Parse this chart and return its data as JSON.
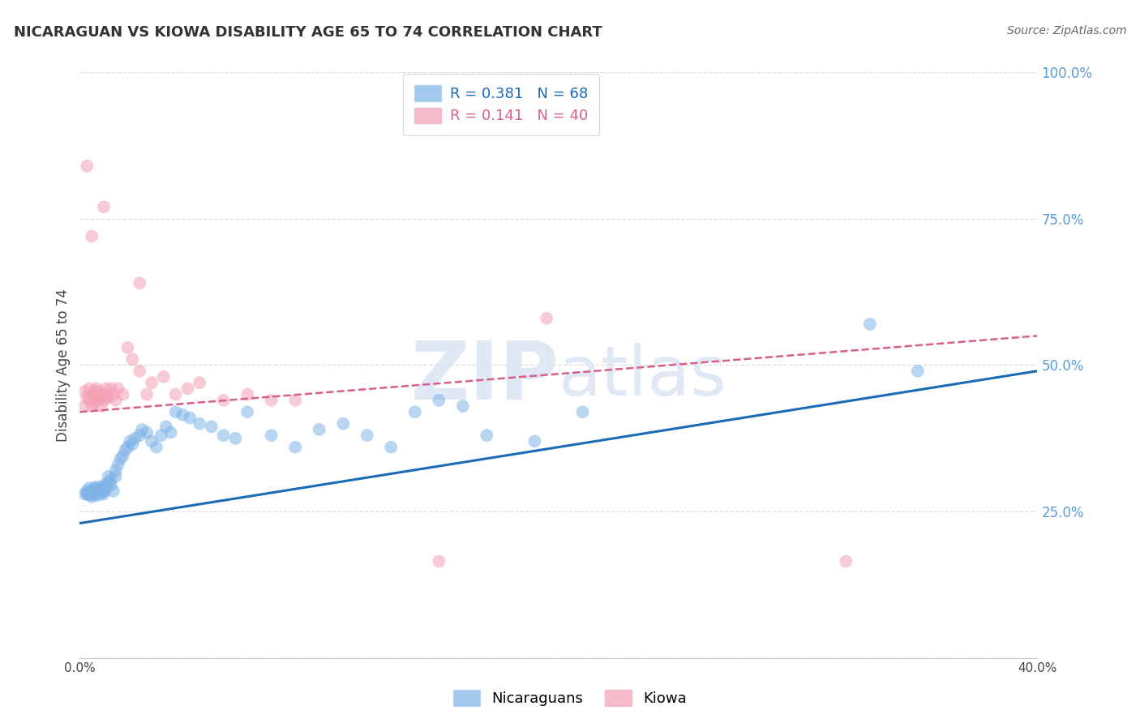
{
  "title": "NICARAGUAN VS KIOWA DISABILITY AGE 65 TO 74 CORRELATION CHART",
  "source": "Source: ZipAtlas.com",
  "ylabel": "Disability Age 65 to 74",
  "xmin": 0.0,
  "xmax": 0.4,
  "ymin": 0.0,
  "ymax": 1.0,
  "yticks": [
    0.0,
    0.25,
    0.5,
    0.75,
    1.0
  ],
  "ytick_labels": [
    "",
    "25.0%",
    "50.0%",
    "75.0%",
    "100.0%"
  ],
  "xtick_positions": [
    0.0,
    0.1,
    0.2,
    0.3,
    0.4
  ],
  "blue_R": 0.381,
  "blue_N": 68,
  "pink_R": 0.141,
  "pink_N": 40,
  "blue_color": "#7EB3E8",
  "pink_color": "#F4A0B5",
  "blue_line_color": "#1A6BB5",
  "pink_line_color": "#D95F8A",
  "background_color": "#FFFFFF",
  "grid_color": "#DDDDDD",
  "watermark_color": "#E0E8F5",
  "blue_scatter_x": [
    0.002,
    0.003,
    0.003,
    0.004,
    0.004,
    0.004,
    0.005,
    0.005,
    0.005,
    0.006,
    0.006,
    0.006,
    0.007,
    0.007,
    0.008,
    0.008,
    0.009,
    0.009,
    0.01,
    0.01,
    0.01,
    0.011,
    0.011,
    0.012,
    0.012,
    0.013,
    0.013,
    0.014,
    0.015,
    0.015,
    0.016,
    0.017,
    0.018,
    0.019,
    0.02,
    0.021,
    0.022,
    0.023,
    0.025,
    0.026,
    0.028,
    0.03,
    0.032,
    0.034,
    0.036,
    0.038,
    0.04,
    0.043,
    0.046,
    0.05,
    0.055,
    0.06,
    0.065,
    0.07,
    0.08,
    0.09,
    0.1,
    0.11,
    0.12,
    0.13,
    0.14,
    0.15,
    0.16,
    0.17,
    0.19,
    0.21,
    0.33,
    0.35
  ],
  "blue_scatter_y": [
    0.28,
    0.28,
    0.285,
    0.278,
    0.282,
    0.29,
    0.275,
    0.28,
    0.285,
    0.278,
    0.282,
    0.29,
    0.285,
    0.292,
    0.278,
    0.288,
    0.282,
    0.29,
    0.28,
    0.285,
    0.295,
    0.288,
    0.295,
    0.3,
    0.31,
    0.305,
    0.295,
    0.285,
    0.31,
    0.32,
    0.33,
    0.34,
    0.345,
    0.355,
    0.36,
    0.37,
    0.365,
    0.375,
    0.38,
    0.39,
    0.385,
    0.37,
    0.36,
    0.38,
    0.395,
    0.385,
    0.42,
    0.415,
    0.41,
    0.4,
    0.395,
    0.38,
    0.375,
    0.42,
    0.38,
    0.36,
    0.39,
    0.4,
    0.38,
    0.36,
    0.42,
    0.44,
    0.43,
    0.38,
    0.37,
    0.42,
    0.57,
    0.49
  ],
  "pink_scatter_x": [
    0.002,
    0.002,
    0.003,
    0.004,
    0.004,
    0.005,
    0.005,
    0.006,
    0.006,
    0.007,
    0.007,
    0.008,
    0.008,
    0.009,
    0.009,
    0.01,
    0.011,
    0.011,
    0.012,
    0.013,
    0.014,
    0.015,
    0.016,
    0.018,
    0.02,
    0.022,
    0.025,
    0.028,
    0.03,
    0.035,
    0.04,
    0.045,
    0.05,
    0.06,
    0.07,
    0.08,
    0.09,
    0.15,
    0.195,
    0.32
  ],
  "pink_scatter_y": [
    0.43,
    0.455,
    0.445,
    0.44,
    0.46,
    0.43,
    0.445,
    0.435,
    0.455,
    0.44,
    0.46,
    0.445,
    0.455,
    0.43,
    0.45,
    0.44,
    0.445,
    0.46,
    0.445,
    0.46,
    0.45,
    0.44,
    0.46,
    0.45,
    0.53,
    0.51,
    0.49,
    0.45,
    0.47,
    0.48,
    0.45,
    0.46,
    0.47,
    0.44,
    0.45,
    0.44,
    0.44,
    0.165,
    0.58,
    0.165
  ],
  "pink_highpoints_x": [
    0.003,
    0.005,
    0.01,
    0.025
  ],
  "pink_highpoints_y": [
    0.84,
    0.72,
    0.77,
    0.64
  ],
  "blue_line_x": [
    0.0,
    0.4
  ],
  "blue_line_y": [
    0.23,
    0.49
  ],
  "pink_line_x": [
    0.0,
    0.4
  ],
  "pink_line_y": [
    0.42,
    0.55
  ]
}
